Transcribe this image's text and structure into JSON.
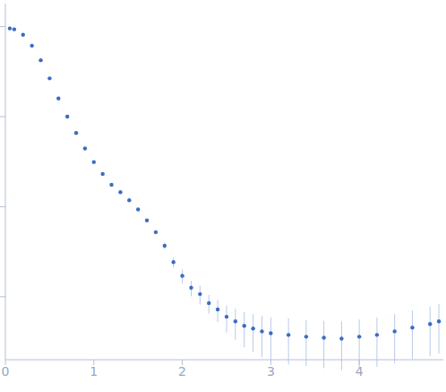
{
  "chart_data": {
    "type": "scatter",
    "log": "y",
    "tick_labels": "x",
    "color": "#3b6cc4",
    "marker": "circle",
    "x": [
      0.05,
      0.1,
      0.2,
      0.3,
      0.4,
      0.5,
      0.6,
      0.7,
      0.8,
      0.9,
      1.0,
      1.1,
      1.2,
      1.3,
      1.4,
      1.5,
      1.6,
      1.7,
      1.8,
      1.9,
      2.0,
      2.1,
      2.2,
      2.3,
      2.4,
      2.5,
      2.6,
      2.7,
      2.8,
      2.9,
      3.0,
      3.2,
      3.4,
      3.6,
      3.8,
      4.0,
      4.2,
      4.4,
      4.6,
      4.8,
      4.9
    ],
    "values": [
      0.955,
      0.933,
      0.811,
      0.614,
      0.423,
      0.266,
      0.159,
      0.1,
      0.0658,
      0.0443,
      0.0313,
      0.0231,
      0.0175,
      0.0145,
      0.0118,
      0.00933,
      0.00705,
      0.00521,
      0.00368,
      0.00242,
      0.00171,
      0.00126,
      0.00107,
      0.00085,
      0.000722,
      0.0006,
      0.000534,
      0.000475,
      0.000443,
      0.000413,
      0.000394,
      0.000377,
      0.00036,
      0.000351,
      0.000343,
      0.00036,
      0.000377,
      0.000413,
      0.000454,
      0.000498,
      0.000534
    ],
    "errors": [
      0.005,
      0.005,
      0.004,
      0.003,
      0.002,
      0.0015,
      0.001,
      0.0008,
      0.0006,
      0.0005,
      0.0004,
      0.0003,
      0.0003,
      0.0003,
      0.0003,
      0.0003,
      0.0003,
      0.0003,
      0.0003,
      0.0003,
      0.0003,
      0.00025,
      0.00025,
      0.0002,
      0.0002,
      0.0002,
      0.0002,
      0.0002,
      0.0002,
      0.0002,
      0.0002,
      0.0002,
      0.00019,
      0.00019,
      0.00019,
      0.0002,
      0.00021,
      0.00023,
      0.00025,
      0.00028,
      0.0003
    ],
    "xlim": [
      0,
      4.95
    ],
    "xticks": [
      0,
      1,
      2,
      3,
      4
    ],
    "ylim": [
      0.0002,
      1.8
    ],
    "yticks": [
      0.001,
      0.01,
      0.1,
      1
    ]
  }
}
